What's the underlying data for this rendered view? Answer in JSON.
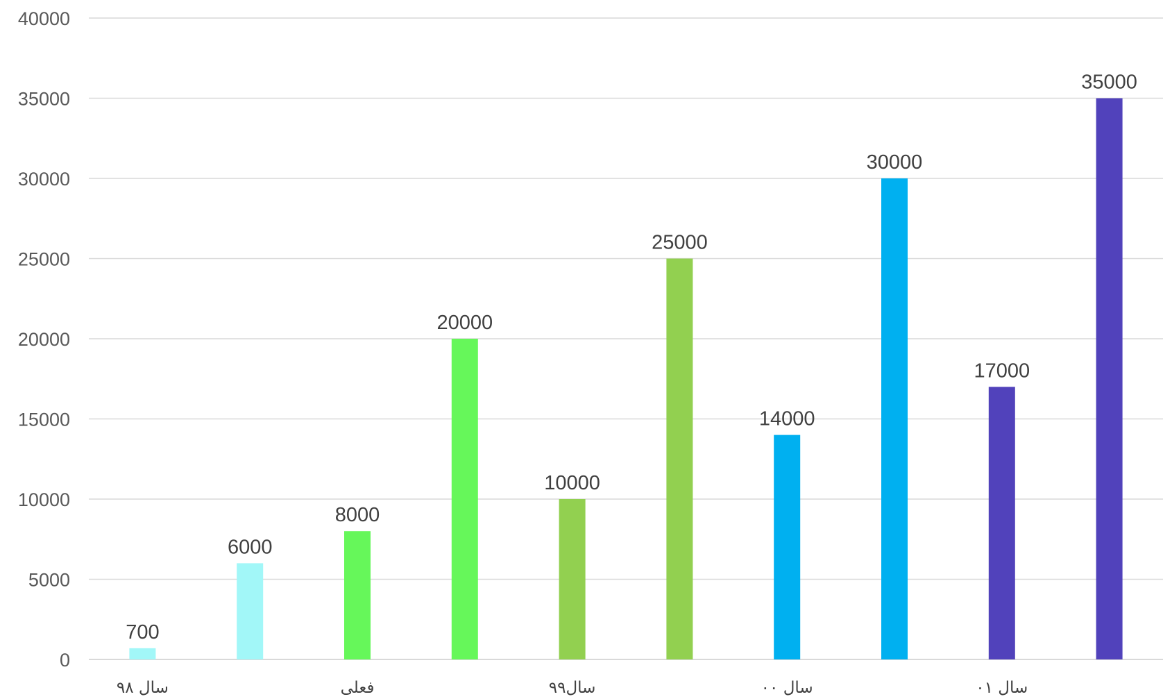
{
  "chart_data": {
    "type": "bar",
    "categories": [
      "سال ۹۸",
      "فعلی",
      "سال۹۹",
      "سال ۰۰",
      "سال ۰۱"
    ],
    "series": [
      {
        "values": [
          700,
          8000,
          10000,
          14000,
          17000
        ]
      },
      {
        "values": [
          6000,
          20000,
          25000,
          30000,
          35000
        ]
      }
    ],
    "category_colors": [
      "#a2f7f8",
      "#66f75a",
      "#92d050",
      "#00b0f0",
      "#5142bb"
    ],
    "title": "",
    "xlabel": "",
    "ylabel": "",
    "ylim": [
      0,
      40000
    ],
    "yticks": [
      0,
      5000,
      10000,
      15000,
      20000,
      25000,
      30000,
      35000,
      40000
    ],
    "data_labels": true,
    "grid": true,
    "legend": "none"
  }
}
